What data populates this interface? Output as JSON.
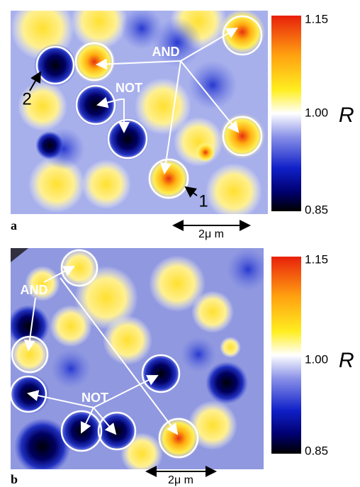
{
  "panels": [
    {
      "label": "a",
      "colorbar": {
        "ticks": [
          "1.15",
          "1.00",
          "0.85"
        ],
        "label": "R"
      },
      "annotations": [
        "AND",
        "NOT",
        "1",
        "2"
      ],
      "scale_bar": "2μ m"
    },
    {
      "label": "b",
      "colorbar": {
        "ticks": [
          "1.15",
          "1.00",
          "0.85"
        ],
        "label": "R"
      },
      "annotations": [
        "AND",
        "NOT"
      ],
      "scale_bar": "2μ m"
    }
  ]
}
